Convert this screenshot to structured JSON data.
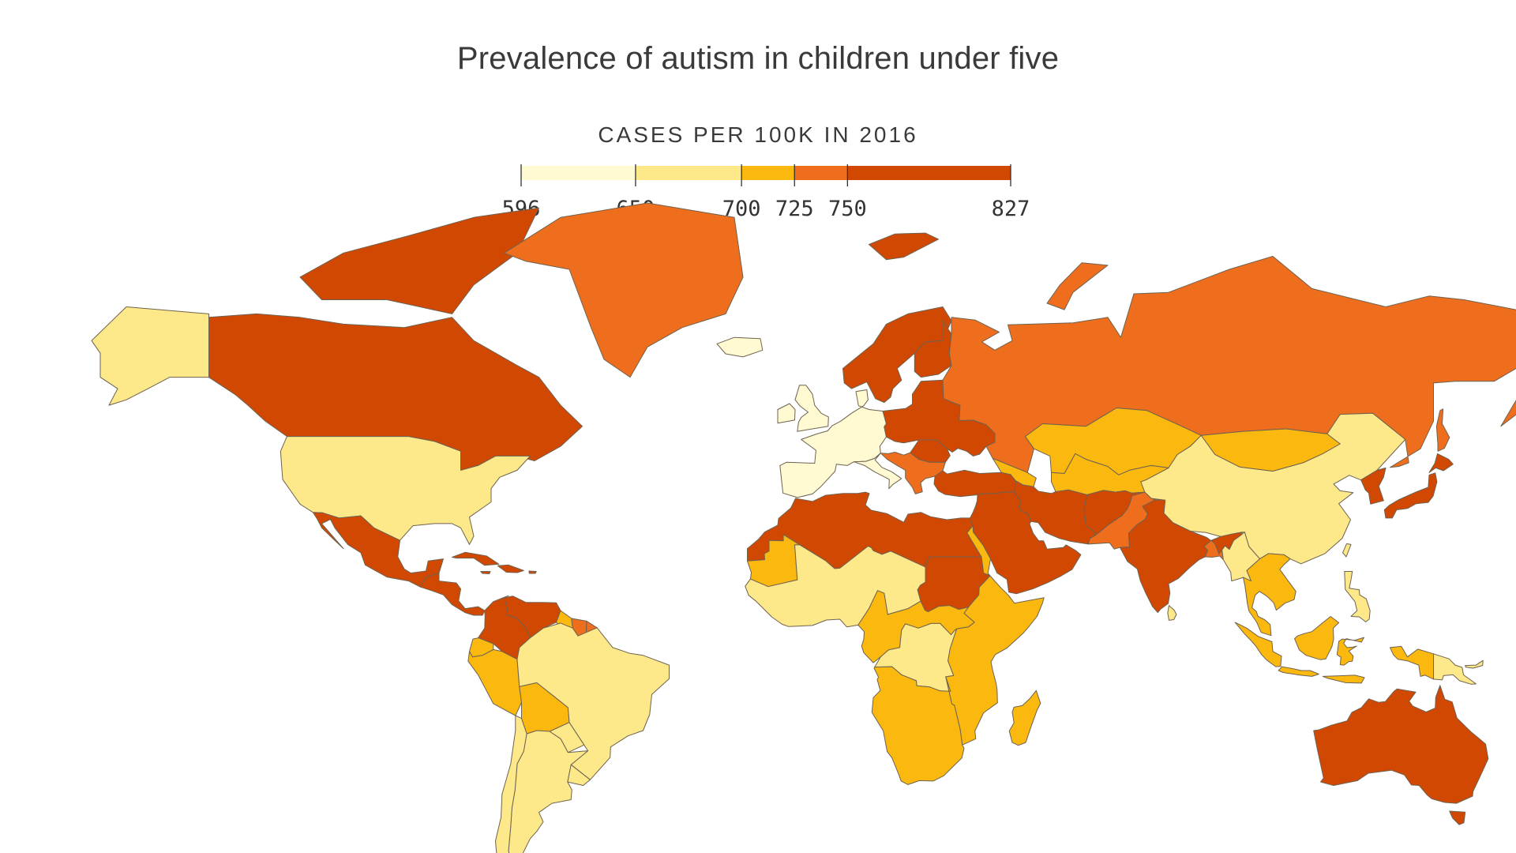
{
  "title": "Prevalence of autism in children under five",
  "legend": {
    "title": "CASES PER 100K IN 2016",
    "breaks": [
      596,
      650,
      700,
      725,
      750,
      827
    ],
    "break_labels": [
      "596",
      "650",
      "700",
      "725",
      "750",
      "827"
    ],
    "colors": [
      "#fffad2",
      "#fde98a",
      "#fbb90f",
      "#ef6e1d",
      "#d14803"
    ]
  },
  "map": {
    "projection": "Miller (world)",
    "regions": [
      {
        "name": "Alaska",
        "bin": 1
      },
      {
        "name": "Canada",
        "bin": 4
      },
      {
        "name": "Greenland",
        "bin": 3
      },
      {
        "name": "United States",
        "bin": 1
      },
      {
        "name": "Mexico",
        "bin": 4
      },
      {
        "name": "Central America",
        "bin": 4
      },
      {
        "name": "Cuba",
        "bin": 4
      },
      {
        "name": "Caribbean",
        "bin": 4
      },
      {
        "name": "Venezuela",
        "bin": 4
      },
      {
        "name": "Colombia",
        "bin": 4
      },
      {
        "name": "Guyana",
        "bin": 2
      },
      {
        "name": "Suriname",
        "bin": 3
      },
      {
        "name": "Ecuador",
        "bin": 2
      },
      {
        "name": "Peru",
        "bin": 2
      },
      {
        "name": "Bolivia",
        "bin": 2
      },
      {
        "name": "Brazil",
        "bin": 1
      },
      {
        "name": "Argentina",
        "bin": 1
      },
      {
        "name": "Chile",
        "bin": 1
      },
      {
        "name": "Paraguay",
        "bin": 1
      },
      {
        "name": "Iceland",
        "bin": 0
      },
      {
        "name": "Scandinavia",
        "bin": 4
      },
      {
        "name": "Western Europe",
        "bin": 0
      },
      {
        "name": "Eastern Europe",
        "bin": 4
      },
      {
        "name": "Balkans",
        "bin": 3
      },
      {
        "name": "Russia",
        "bin": 3
      },
      {
        "name": "Kazakhstan",
        "bin": 2
      },
      {
        "name": "Central Asia",
        "bin": 2
      },
      {
        "name": "Mongolia",
        "bin": 2
      },
      {
        "name": "China",
        "bin": 1
      },
      {
        "name": "Japan",
        "bin": 4
      },
      {
        "name": "Korea",
        "bin": 4
      },
      {
        "name": "Turkey",
        "bin": 4
      },
      {
        "name": "Middle East",
        "bin": 4
      },
      {
        "name": "Iran",
        "bin": 4
      },
      {
        "name": "Afghanistan",
        "bin": 4
      },
      {
        "name": "Pakistan",
        "bin": 3
      },
      {
        "name": "India",
        "bin": 4
      },
      {
        "name": "Bangladesh",
        "bin": 3
      },
      {
        "name": "Myanmar",
        "bin": 1
      },
      {
        "name": "Southeast Asia",
        "bin": 2
      },
      {
        "name": "Philippines",
        "bin": 1
      },
      {
        "name": "Indonesia",
        "bin": 2
      },
      {
        "name": "Papua New Guinea",
        "bin": 1
      },
      {
        "name": "Australia",
        "bin": 4
      },
      {
        "name": "New Zealand",
        "bin": 3
      },
      {
        "name": "North Africa",
        "bin": 4
      },
      {
        "name": "Sudan",
        "bin": 4
      },
      {
        "name": "Mauritania",
        "bin": 2
      },
      {
        "name": "West Africa",
        "bin": 1
      },
      {
        "name": "Central Africa",
        "bin": 2
      },
      {
        "name": "DR Congo",
        "bin": 1
      },
      {
        "name": "East Africa",
        "bin": 2
      },
      {
        "name": "Southern Africa",
        "bin": 2
      },
      {
        "name": "Madagascar",
        "bin": 2
      }
    ]
  }
}
